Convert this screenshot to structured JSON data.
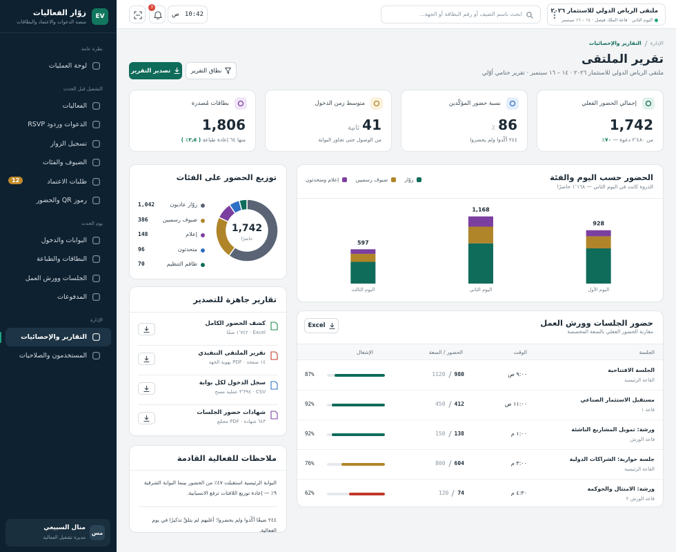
{
  "sidebar": {
    "brand": "زوّار الفعاليات",
    "tagline": "منصة الدعوات والاعتماد والبطاقات",
    "logo": "EV",
    "sections": [
      {
        "title": "نظرة عامة",
        "items": [
          {
            "label": "لوحة العمليات"
          }
        ]
      },
      {
        "title": "التشغيل قبل الحدث",
        "items": [
          {
            "label": "الفعاليات"
          },
          {
            "label": "الدعوات وردود RSVP"
          },
          {
            "label": "تسجيل الزوار"
          },
          {
            "label": "الضيوف والفئات"
          },
          {
            "label": "طلبات الاعتماد",
            "badge": "12"
          },
          {
            "label": "رموز QR والحضور"
          }
        ]
      },
      {
        "title": "يوم الحدث",
        "items": [
          {
            "label": "البوابات والدخول"
          },
          {
            "label": "البطاقات والطباعة"
          },
          {
            "label": "الجلسات وورش العمل"
          },
          {
            "label": "المدفوعات"
          }
        ]
      },
      {
        "title": "الإدارة",
        "items": [
          {
            "label": "التقارير والإحصائيات",
            "active": true
          },
          {
            "label": "المستخدمون والصلاحيات"
          }
        ]
      }
    ],
    "user": {
      "name": "منال السبيعي",
      "role": "مديرة تشغيل الفعالية",
      "initials": "مس"
    }
  },
  "topbar": {
    "event_name": "ملتقى الرياض الدولي للاستثمار ٢٠٢٦",
    "event_details": "اليوم الثاني · قاعة الملك فيصل · ١٤ – ١٦ سبتمبر",
    "search_placeholder": "ابحث باسم الضيف أو رقم البطاقة أو الجهة...",
    "time": "10:42",
    "period": "ص",
    "notifications": "3"
  },
  "header": {
    "breadcrumb": [
      "الإدارة",
      "التقارير والإحصائيات"
    ],
    "title": "تقرير الملتقى",
    "subtitle": "ملتقى الرياض الدولي للاستثمار ٢٠٢٦ · ١٤ – ١٦ سبتمبر · تقرير ختامي أوّلي",
    "actions": [
      "تصدير التقرير",
      "نطاق التقرير"
    ]
  },
  "kpis": [
    {
      "label": "إجمالي الحضور الفعلي",
      "value": "1,742",
      "note": "من ٢٬٤٨٠ دعوة —",
      "highlight": "٧٠٪",
      "color": "#e3f3ec",
      "ink": "#0f6b5a"
    },
    {
      "label": "نسبة حضور المؤكّدين",
      "value": "86",
      "unit": "٪",
      "note": "٢٤٤ أكّدوا ولم يحضروا",
      "color": "#e4eefb",
      "ink": "#2f6fc4"
    },
    {
      "label": "متوسط زمن الدخول",
      "value": "41",
      "unit": "ثانية",
      "note": "من الوصول حتى تجاوز البوابة",
      "color": "#fbf1dc",
      "ink": "#b0852a"
    },
    {
      "label": "بطاقات مُصدرة",
      "value": "1,806",
      "note": "منها ٦٤ إعادة طباعة",
      "highlight": "( ٣٫٥٪ )",
      "color": "#f1e6f7",
      "ink": "#7b3fa0"
    }
  ],
  "chart_data": [
    {
      "type": "bar",
      "stacked": true,
      "title": "الحضور حسب اليوم والفئة",
      "subtitle": "الذروة كانت في اليوم الثاني — ١٬١٦٨ حاضرًا",
      "categories": [
        "اليوم الأول",
        "اليوم الثاني",
        "اليوم الثالث"
      ],
      "series": [
        {
          "name": "زوّار",
          "color": "#0f6b5a",
          "values": [
            612,
            700,
            378
          ]
        },
        {
          "name": "ضيوف رسميين",
          "color": "#b0852a",
          "values": [
            211,
            290,
            139
          ]
        },
        {
          "name": "إعلام ومتحدثون",
          "color": "#7b3fa0",
          "values": [
            105,
            178,
            80
          ]
        }
      ],
      "totals": [
        928,
        1168,
        597
      ],
      "total_labels": [
        "928",
        "1,168",
        "597"
      ],
      "ylim": [
        0,
        1200
      ]
    },
    {
      "type": "donut",
      "title": "توزيع الحضور على الفئات",
      "center_value": "1,742",
      "center_label": "حاضرًا",
      "categories": [
        "زوّار عاديون",
        "ضيوف رسميين",
        "إعلام",
        "متحدثون",
        "طاقم التنظيم"
      ],
      "values": [
        1042,
        386,
        148,
        96,
        70
      ],
      "value_labels": [
        "1,042",
        "386",
        "148",
        "96",
        "70"
      ],
      "colors": [
        "#5a6475",
        "#b0852a",
        "#7b3fa0",
        "#2f6fc4",
        "#0f6b5a"
      ]
    }
  ],
  "reports": {
    "title": "تقارير جاهزة للتصدير",
    "items": [
      {
        "name": "كشف الحضور الكامل",
        "meta": "Excel · ١٬٧٤٢ صفًا",
        "color": "#1f8a4c"
      },
      {
        "name": "تقرير الملتقى التنفيذي",
        "meta": "١٤ صفحة · PDF بهوية الجهة",
        "color": "#c0392b"
      },
      {
        "name": "سجل الدخول لكل بوابة",
        "meta": "CSV · ٣٬٣٩٤ عملية مسح",
        "color": "#2f6fc4"
      },
      {
        "name": "شهادات حضور الجلسات",
        "meta": "٦٤٣ شهادة · PDF مجمّع",
        "color": "#7b3fa0"
      }
    ]
  },
  "notes": {
    "title": "ملاحظات للفعالية القادمة",
    "items": [
      "البوابة الرئيسية استقبلت ٤٧٪ من الحضور بينما البوابة الشرقية ٩٪ — إعادة توزيع اللافتات ترفع الانسيابية.",
      "٢٤٤ ضيفًا أكّدوا ولم يحضروا؛ أغلبهم لم يتلقَّ تذكيرًا في يوم الفعالية."
    ]
  },
  "sessions": {
    "title": "حضور الجلسات وورش العمل",
    "subtitle": "مقارنة الحضور الفعلي بالسعة المخصصة",
    "export": "Excel",
    "columns": [
      "الجلسة",
      "الوقت",
      "الحضور / السعة",
      "الإشغال"
    ],
    "rows": [
      {
        "name": "الجلسة الافتتاحية",
        "room": "القاعة الرئيسية",
        "time": "٩:٠٠ ص",
        "attendance": 980,
        "capacity": 1120,
        "occupancy": 87,
        "occupancy_label": "87%",
        "color": "#0f6b5a"
      },
      {
        "name": "مستقبل الاستثمار الصناعي",
        "room": "قاعة ١",
        "time": "١١:٠٠ ص",
        "attendance": 412,
        "capacity": 450,
        "occupancy": 92,
        "occupancy_label": "92%",
        "color": "#0f6b5a"
      },
      {
        "name": "ورشة: تمويل المشاريع الناشئة",
        "room": "قاعة الورش",
        "time": "١:٠٠ م",
        "attendance": 138,
        "capacity": 150,
        "occupancy": 92,
        "occupancy_label": "92%",
        "color": "#0f6b5a"
      },
      {
        "name": "جلسة حوارية: الشراكات الدولية",
        "room": "القاعة الرئيسية",
        "time": "٣:٠٠ م",
        "attendance": 604,
        "capacity": 800,
        "occupancy": 76,
        "occupancy_label": "76%",
        "color": "#b0852a"
      },
      {
        "name": "ورشة: الامتثال والحوكمة",
        "room": "قاعة الورش ٢",
        "time": "٤:٣٠ م",
        "attendance": 74,
        "capacity": 120,
        "occupancy": 62,
        "occupancy_label": "62%",
        "color": "#c0392b"
      }
    ]
  }
}
